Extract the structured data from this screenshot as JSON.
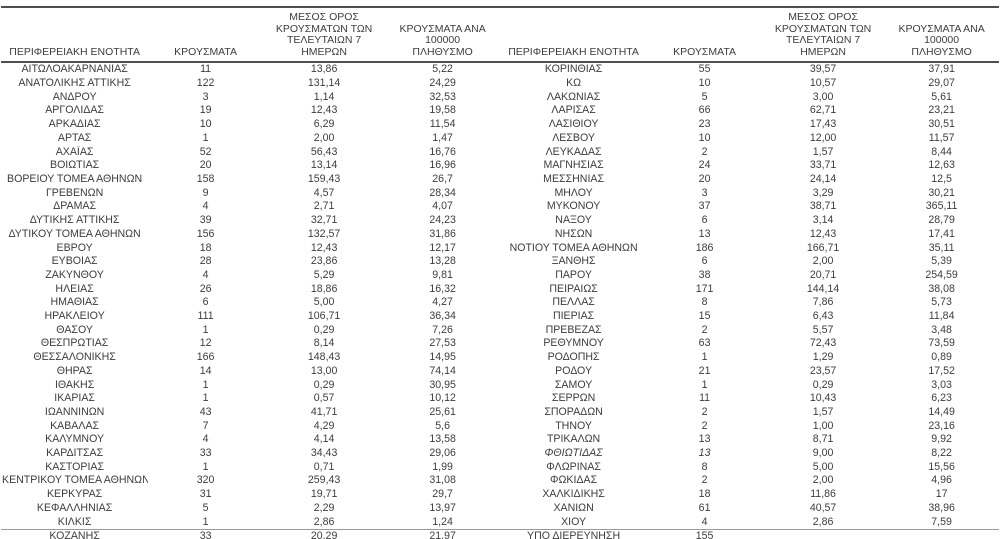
{
  "colors": {
    "text": "#3d3d3d",
    "rule_heavy": "#4f4f4f",
    "rule_light": "#9a9a9a",
    "background": "#ffffff"
  },
  "table": {
    "headers": [
      "ΠΕΡΙΦΕΡΕΙΑΚΗ ΕΝΟΤΗΤΑ",
      "ΚΡΟΥΣΜΑΤΑ",
      "ΜΕΣΟΣ ΟΡΟΣ\nΚΡΟΥΣΜΑΤΩΝ ΤΩΝ\nΤΕΛΕΥΤΑΙΩΝ 7 ΗΜΕΡΩΝ",
      "ΚΡΟΥΣΜΑΤΑ ΑΝΑ 100000\nΠΛΗΘΥΣΜΟ"
    ],
    "left_rows": [
      {
        "name": "ΑΙΤΩΛΟΑΚΑΡΝΑΝΙΑΣ",
        "cases": "11",
        "avg7": "13,86",
        "per100k": "5,22"
      },
      {
        "name": "ΑΝΑΤΟΛΙΚΗΣ ΑΤΤΙΚΗΣ",
        "cases": "122",
        "avg7": "131,14",
        "per100k": "24,29"
      },
      {
        "name": "ΑΝΔΡΟΥ",
        "cases": "3",
        "avg7": "1,14",
        "per100k": "32,53"
      },
      {
        "name": "ΑΡΓΟΛΙΔΑΣ",
        "cases": "19",
        "avg7": "12,43",
        "per100k": "19,58"
      },
      {
        "name": "ΑΡΚΑΔΙΑΣ",
        "cases": "10",
        "avg7": "6,29",
        "per100k": "11,54"
      },
      {
        "name": "ΑΡΤΑΣ",
        "cases": "1",
        "avg7": "2,00",
        "per100k": "1,47"
      },
      {
        "name": "ΑΧΑΪΑΣ",
        "cases": "52",
        "avg7": "56,43",
        "per100k": "16,76"
      },
      {
        "name": "ΒΟΙΩΤΙΑΣ",
        "cases": "20",
        "avg7": "13,14",
        "per100k": "16,96"
      },
      {
        "name": "ΒΟΡΕΙΟΥ ΤΟΜΕΑ ΑΘΗΝΩΝ",
        "cases": "158",
        "avg7": "159,43",
        "per100k": "26,7"
      },
      {
        "name": "ΓΡΕΒΕΝΩΝ",
        "cases": "9",
        "avg7": "4,57",
        "per100k": "28,34"
      },
      {
        "name": "ΔΡΑΜΑΣ",
        "cases": "4",
        "avg7": "2,71",
        "per100k": "4,07"
      },
      {
        "name": "ΔΥΤΙΚΗΣ ΑΤΤΙΚΗΣ",
        "cases": "39",
        "avg7": "32,71",
        "per100k": "24,23"
      },
      {
        "name": "ΔΥΤΙΚΟΥ ΤΟΜΕΑ ΑΘΗΝΩΝ",
        "cases": "156",
        "avg7": "132,57",
        "per100k": "31,86"
      },
      {
        "name": "ΕΒΡΟΥ",
        "cases": "18",
        "avg7": "12,43",
        "per100k": "12,17"
      },
      {
        "name": "ΕΥΒΟΙΑΣ",
        "cases": "28",
        "avg7": "23,86",
        "per100k": "13,28"
      },
      {
        "name": "ΖΑΚΥΝΘΟΥ",
        "cases": "4",
        "avg7": "5,29",
        "per100k": "9,81"
      },
      {
        "name": "ΗΛΕΙΑΣ",
        "cases": "26",
        "avg7": "18,86",
        "per100k": "16,32"
      },
      {
        "name": "ΗΜΑΘΙΑΣ",
        "cases": "6",
        "avg7": "5,00",
        "per100k": "4,27"
      },
      {
        "name": "ΗΡΑΚΛΕΙΟΥ",
        "cases": "111",
        "avg7": "106,71",
        "per100k": "36,34"
      },
      {
        "name": "ΘΑΣΟΥ",
        "cases": "1",
        "avg7": "0,29",
        "per100k": "7,26"
      },
      {
        "name": "ΘΕΣΠΡΩΤΙΑΣ",
        "cases": "12",
        "avg7": "8,14",
        "per100k": "27,53"
      },
      {
        "name": "ΘΕΣΣΑΛΟΝΙΚΗΣ",
        "cases": "166",
        "avg7": "148,43",
        "per100k": "14,95"
      },
      {
        "name": "ΘΗΡΑΣ",
        "cases": "14",
        "avg7": "13,00",
        "per100k": "74,14"
      },
      {
        "name": "ΙΘΑΚΗΣ",
        "cases": "1",
        "avg7": "0,29",
        "per100k": "30,95"
      },
      {
        "name": "ΙΚΑΡΙΑΣ",
        "cases": "1",
        "avg7": "0,57",
        "per100k": "10,12"
      },
      {
        "name": "ΙΩΑΝΝΙΝΩΝ",
        "cases": "43",
        "avg7": "41,71",
        "per100k": "25,61"
      },
      {
        "name": "ΚΑΒΑΛΑΣ",
        "cases": "7",
        "avg7": "4,29",
        "per100k": "5,6"
      },
      {
        "name": "ΚΑΛΥΜΝΟΥ",
        "cases": "4",
        "avg7": "4,14",
        "per100k": "13,58"
      },
      {
        "name": "ΚΑΡΔΙΤΣΑΣ",
        "cases": "33",
        "avg7": "34,43",
        "per100k": "29,06"
      },
      {
        "name": "ΚΑΣΤΟΡΙΑΣ",
        "cases": "1",
        "avg7": "0,71",
        "per100k": "1,99"
      },
      {
        "name": "ΚΕΝΤΡΙΚΟΥ ΤΟΜΕΑ ΑΘΗΝΩΝ",
        "cases": "320",
        "avg7": "259,43",
        "per100k": "31,08"
      },
      {
        "name": "ΚΕΡΚΥΡΑΣ",
        "cases": "31",
        "avg7": "19,71",
        "per100k": "29,7"
      },
      {
        "name": "ΚΕΦΑΛΛΗΝΙΑΣ",
        "cases": "5",
        "avg7": "2,29",
        "per100k": "13,97"
      },
      {
        "name": "ΚΙΛΚΙΣ",
        "cases": "1",
        "avg7": "2,86",
        "per100k": "1,24"
      },
      {
        "name": "ΚΟΖΑΝΗΣ",
        "cases": "33",
        "avg7": "20,29",
        "per100k": "21,97"
      }
    ],
    "right_rows": [
      {
        "name": "ΚΟΡΙΝΘΙΑΣ",
        "cases": "55",
        "avg7": "39,57",
        "per100k": "37,91"
      },
      {
        "name": "ΚΩ",
        "cases": "10",
        "avg7": "10,57",
        "per100k": "29,07"
      },
      {
        "name": "ΛΑΚΩΝΙΑΣ",
        "cases": "5",
        "avg7": "3,00",
        "per100k": "5,61"
      },
      {
        "name": "ΛΑΡΙΣΑΣ",
        "cases": "66",
        "avg7": "62,71",
        "per100k": "23,21"
      },
      {
        "name": "ΛΑΣΙΘΙΟΥ",
        "cases": "23",
        "avg7": "17,43",
        "per100k": "30,51"
      },
      {
        "name": "ΛΕΣΒΟΥ",
        "cases": "10",
        "avg7": "12,00",
        "per100k": "11,57"
      },
      {
        "name": "ΛΕΥΚΑΔΑΣ",
        "cases": "2",
        "avg7": "1,57",
        "per100k": "8,44"
      },
      {
        "name": "ΜΑΓΝΗΣΙΑΣ",
        "cases": "24",
        "avg7": "33,71",
        "per100k": "12,63"
      },
      {
        "name": "ΜΕΣΣΗΝΙΑΣ",
        "cases": "20",
        "avg7": "24,14",
        "per100k": "12,5"
      },
      {
        "name": "ΜΗΛΟΥ",
        "cases": "3",
        "avg7": "3,29",
        "per100k": "30,21"
      },
      {
        "name": "ΜΥΚΟΝΟΥ",
        "cases": "37",
        "avg7": "38,71",
        "per100k": "365,11"
      },
      {
        "name": "ΝΑΞΟΥ",
        "cases": "6",
        "avg7": "3,14",
        "per100k": "28,79"
      },
      {
        "name": "ΝΗΣΩΝ",
        "cases": "13",
        "avg7": "12,43",
        "per100k": "17,41"
      },
      {
        "name": "ΝΟΤΙΟΥ ΤΟΜΕΑ ΑΘΗΝΩΝ",
        "cases": "186",
        "avg7": "166,71",
        "per100k": "35,11"
      },
      {
        "name": "ΞΑΝΘΗΣ",
        "cases": "6",
        "avg7": "2,00",
        "per100k": "5,39"
      },
      {
        "name": "ΠΑΡΟΥ",
        "cases": "38",
        "avg7": "20,71",
        "per100k": "254,59"
      },
      {
        "name": "ΠΕΙΡΑΙΩΣ",
        "cases": "171",
        "avg7": "144,14",
        "per100k": "38,08"
      },
      {
        "name": "ΠΕΛΛΑΣ",
        "cases": "8",
        "avg7": "7,86",
        "per100k": "5,73"
      },
      {
        "name": "ΠΙΕΡΙΑΣ",
        "cases": "15",
        "avg7": "6,43",
        "per100k": "11,84"
      },
      {
        "name": "ΠΡΕΒΕΖΑΣ",
        "cases": "2",
        "avg7": "5,57",
        "per100k": "3,48"
      },
      {
        "name": "ΡΕΘΥΜΝΟΥ",
        "cases": "63",
        "avg7": "72,43",
        "per100k": "73,59"
      },
      {
        "name": "ΡΟΔΟΠΗΣ",
        "cases": "1",
        "avg7": "1,29",
        "per100k": "0,89"
      },
      {
        "name": "ΡΟΔΟΥ",
        "cases": "21",
        "avg7": "23,57",
        "per100k": "17,52"
      },
      {
        "name": "ΣΑΜΟΥ",
        "cases": "1",
        "avg7": "0,29",
        "per100k": "3,03"
      },
      {
        "name": "ΣΕΡΡΩΝ",
        "cases": "11",
        "avg7": "10,43",
        "per100k": "6,23"
      },
      {
        "name": "ΣΠΟΡΑΔΩΝ",
        "cases": "2",
        "avg7": "1,57",
        "per100k": "14,49"
      },
      {
        "name": "ΤΗΝΟΥ",
        "cases": "2",
        "avg7": "1,00",
        "per100k": "23,16"
      },
      {
        "name": "ΤΡΙΚΑΛΩΝ",
        "cases": "13",
        "avg7": "8,71",
        "per100k": "9,92"
      },
      {
        "name": "ΦΘΙΩΤΙΔΑΣ",
        "cases": "13",
        "avg7": "9,00",
        "per100k": "8,22",
        "italic": true
      },
      {
        "name": "ΦΛΩΡΙΝΑΣ",
        "cases": "8",
        "avg7": "5,00",
        "per100k": "15,56"
      },
      {
        "name": "ΦΩΚΙΔΑΣ",
        "cases": "2",
        "avg7": "2,00",
        "per100k": "4,96"
      },
      {
        "name": "ΧΑΛΚΙΔΙΚΗΣ",
        "cases": "18",
        "avg7": "11,86",
        "per100k": "17"
      },
      {
        "name": "ΧΑΝΙΩΝ",
        "cases": "61",
        "avg7": "40,57",
        "per100k": "38,96"
      },
      {
        "name": "ΧΙΟΥ",
        "cases": "4",
        "avg7": "2,86",
        "per100k": "7,59"
      },
      {
        "name": "ΥΠΟ ΔΙΕΡΕΥΝΗΣΗ",
        "cases": "155",
        "avg7": "",
        "per100k": "",
        "align_left": true
      }
    ]
  }
}
